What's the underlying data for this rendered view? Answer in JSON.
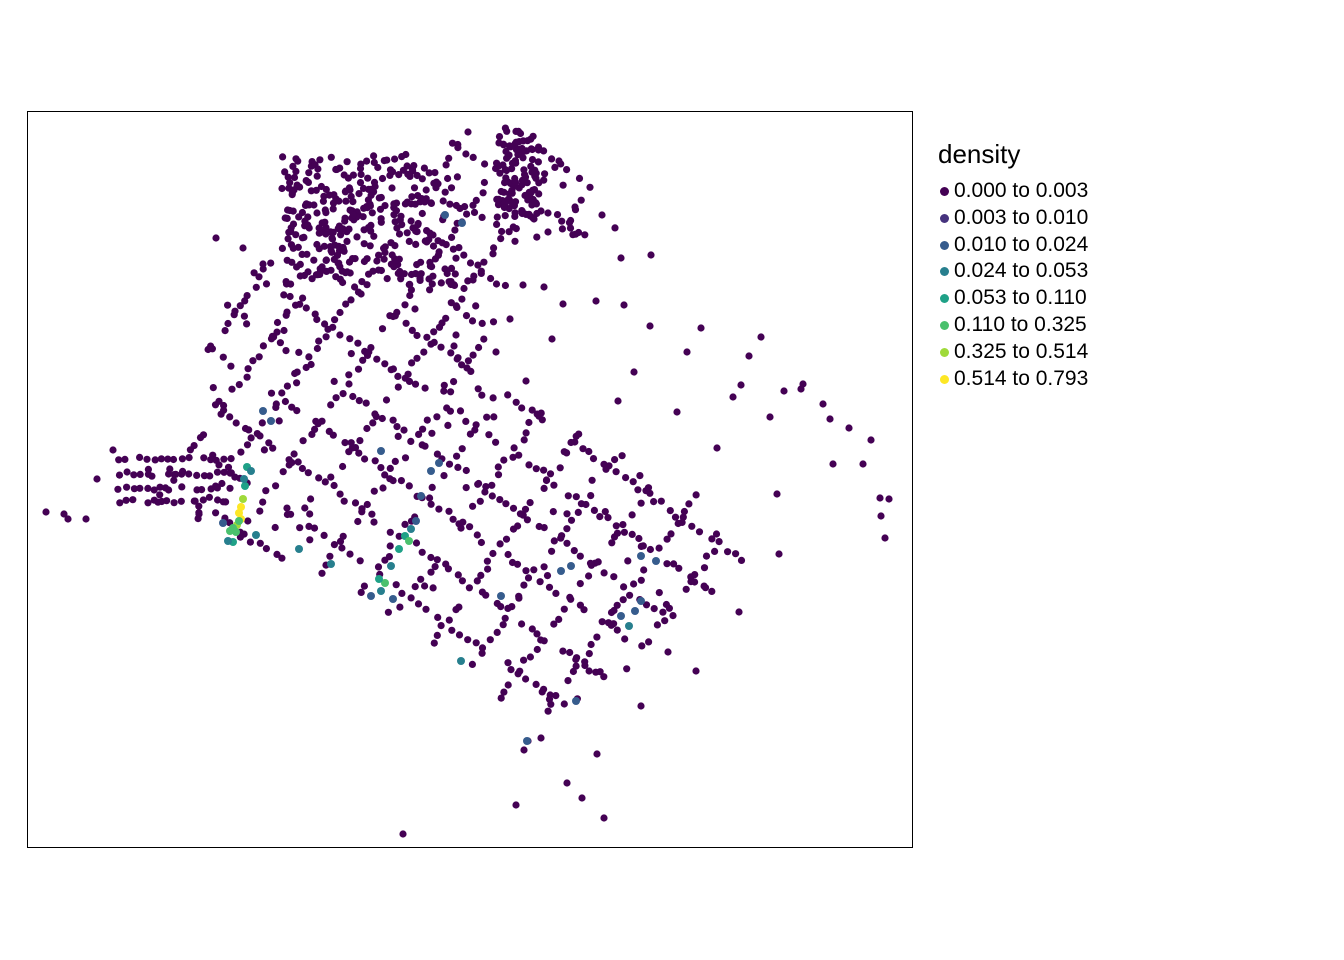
{
  "legend": {
    "title": "density",
    "classes": [
      {
        "label": "0.000 to 0.003",
        "color": "#440154"
      },
      {
        "label": "0.003 to 0.010",
        "color": "#46337E"
      },
      {
        "label": "0.010 to 0.024",
        "color": "#365C8D"
      },
      {
        "label": "0.024 to 0.053",
        "color": "#277F8E"
      },
      {
        "label": "0.053 to 0.110",
        "color": "#1FA187"
      },
      {
        "label": "0.110 to 0.325",
        "color": "#4AC16D"
      },
      {
        "label": "0.325 to 0.514",
        "color": "#9FDA3A"
      },
      {
        "label": "0.514 to 0.793",
        "color": "#FDE725"
      }
    ]
  },
  "map": {
    "layer": "point density",
    "border": "on"
  }
}
